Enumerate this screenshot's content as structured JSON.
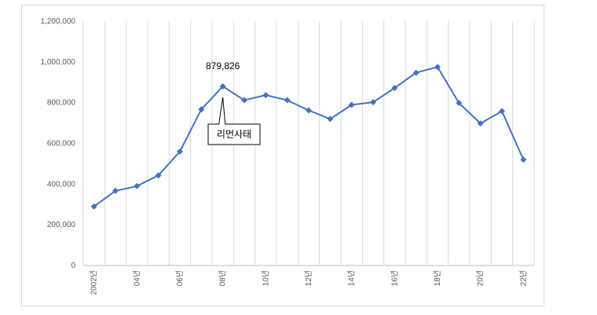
{
  "chart_data": {
    "type": "line",
    "title": "",
    "xlabel": "",
    "ylabel": "",
    "ylim": [
      0,
      1200000
    ],
    "yticks": [
      0,
      200000,
      400000,
      600000,
      800000,
      1000000,
      1200000
    ],
    "ytick_labels": [
      "0",
      "200,000",
      "400,000",
      "600,000",
      "800,000",
      "1,000,000",
      "1,200,000"
    ],
    "years": [
      2002,
      2003,
      2004,
      2005,
      2006,
      2007,
      2008,
      2009,
      2010,
      2011,
      2012,
      2013,
      2014,
      2015,
      2016,
      2017,
      2018,
      2019,
      2020,
      2021,
      2022
    ],
    "x_tick_labels": [
      "2002년",
      "",
      "04년",
      "",
      "06년",
      "",
      "08년",
      "",
      "10년",
      "",
      "12년",
      "",
      "14년",
      "",
      "16년",
      "",
      "18년",
      "",
      "20년",
      "",
      "22년"
    ],
    "grid": "vertical",
    "color": "#4472c4",
    "series": [
      {
        "values": [
          290000,
          367000,
          390000,
          443000,
          560000,
          767000,
          879826,
          812000,
          837000,
          812000,
          762000,
          720000,
          789000,
          802000,
          872000,
          947000,
          975000,
          798000,
          698000,
          758000,
          520000
        ]
      }
    ],
    "annotations": [
      {
        "text": "879,826",
        "x": 2008
      },
      {
        "text": "리먼사태",
        "x": 2008
      }
    ]
  }
}
